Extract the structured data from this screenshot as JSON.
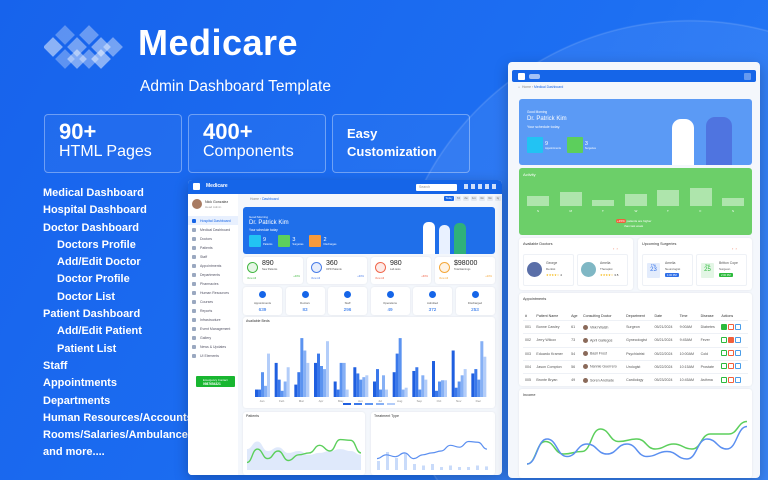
{
  "brand": {
    "name": "Medicare",
    "subtitle": "Admin Dashboard Template"
  },
  "features": [
    {
      "big": "90+",
      "small": "HTML Pages"
    },
    {
      "big": "400+",
      "small": "Components"
    },
    {
      "line1": "Easy",
      "line2": "Customization"
    }
  ],
  "page_list": [
    {
      "label": "Medical Dashboard",
      "indent": false
    },
    {
      "label": "Hospital Dashboard",
      "indent": false
    },
    {
      "label": "Doctor Dashboard",
      "indent": false
    },
    {
      "label": "Doctors Profile",
      "indent": true
    },
    {
      "label": "Add/Edit Doctor",
      "indent": true
    },
    {
      "label": "Doctor Profile",
      "indent": true
    },
    {
      "label": "Doctor List",
      "indent": true
    },
    {
      "label": "Patient Dashboard",
      "indent": false
    },
    {
      "label": "Add/Edit Patient",
      "indent": true
    },
    {
      "label": "Patient List",
      "indent": true
    },
    {
      "label": "Staff",
      "indent": false
    },
    {
      "label": "Appointments",
      "indent": false
    },
    {
      "label": "Departments",
      "indent": false
    },
    {
      "label": "Human Resources/Accounts",
      "indent": false
    },
    {
      "label": "Rooms/Salaries/Ambulance",
      "indent": false
    },
    {
      "label": "and more....",
      "indent": false
    }
  ],
  "hospital": {
    "logo": "Medicare",
    "search_placeholder": "Search",
    "user": {
      "name": "Nick Gonzalez",
      "role": "Head Admin"
    },
    "breadcrumb": [
      "Home",
      "Dashboard"
    ],
    "periods": [
      "Today",
      "7d",
      "2w",
      "1m",
      "3m",
      "6m",
      "1y"
    ],
    "sidebar": [
      "Hospital Dashboard",
      "Medical Dashboard",
      "Doctors",
      "Patients",
      "Staff",
      "Appointments",
      "Departments",
      "Pharmacies",
      "Human Resources",
      "Courses",
      "Reports",
      "Infrastructure",
      "Event Management",
      "Gallery",
      "News & Updates",
      "UI Elements"
    ],
    "emergency": {
      "label": "Emergency Contact",
      "number": "0987654321"
    },
    "banner": {
      "greeting": "Good Morning",
      "name": "Dr. Patrick Kim",
      "note": "Your schedule today",
      "stats": [
        {
          "value": "9",
          "label": "Patients",
          "color": "#22c3f3"
        },
        {
          "value": "3",
          "label": "Surgeries",
          "color": "#5ccf5c"
        },
        {
          "value": "2",
          "label": "Discharges",
          "color": "#f79a3c"
        }
      ]
    },
    "stat_cards": [
      {
        "value": "890",
        "label": "New Patients",
        "link": "View All",
        "change": "+40%",
        "color": "#43b843"
      },
      {
        "value": "360",
        "label": "OPD Patients",
        "link": "View All",
        "change": "+30%",
        "color": "#4a7de8"
      },
      {
        "value": "980",
        "label": "Lab tests",
        "link": "View All",
        "change": "+60%",
        "color": "#f0654a"
      },
      {
        "value": "$98000",
        "label": "Total Earnings",
        "link": "View All",
        "change": "+20%",
        "color": "#f4a73a"
      }
    ],
    "counters": [
      {
        "label": "Appointments",
        "value": "639"
      },
      {
        "label": "Doctors",
        "value": "83"
      },
      {
        "label": "Staff",
        "value": "296"
      },
      {
        "label": "Operations",
        "value": "49"
      },
      {
        "label": "Admitted",
        "value": "372"
      },
      {
        "label": "Discharged",
        "value": "253"
      }
    ],
    "beds_title": "Available Beds",
    "patients_title": "Patients",
    "treatment_title": "Treatment Type"
  },
  "medical": {
    "breadcrumb": [
      "Home",
      "Medical Dashboard"
    ],
    "banner": {
      "greeting": "Good Morning",
      "name": "Dr. Patrick Kim",
      "note": "Your schedule today.",
      "stats": [
        {
          "value": "9",
          "label": "Appointments",
          "color": "#22c3f3"
        },
        {
          "value": "3",
          "label": "Surgeries",
          "color": "#5ccf5c"
        }
      ]
    },
    "activity": {
      "title": "Activity",
      "days": [
        "S",
        "M",
        "T",
        "W",
        "T",
        "F",
        "S"
      ],
      "badge": "+15%",
      "note": "patients are higher",
      "note2": "than last week"
    },
    "doctors": {
      "title": "Available Doctors",
      "items": [
        {
          "name": "George",
          "role": "Dentist",
          "rating": "4"
        },
        {
          "name": "Amelia",
          "role": "Therapist",
          "rating": "3.5"
        }
      ]
    },
    "surgeries": {
      "title": "Upcoming Surgeries",
      "items": [
        {
          "day": "Thu",
          "date": "23",
          "name": "Amelia",
          "role": "Neurologist",
          "time": "1:00 PM",
          "color": "#2f6fe8"
        },
        {
          "day": "Sat",
          "date": "25",
          "name": "Britton Cope",
          "role": "Surgeon",
          "time": "2:00 PM",
          "color": "#2cba3c"
        }
      ]
    },
    "appointments": {
      "title": "Appointments",
      "columns": [
        "#",
        "Patient Name",
        "Age",
        "Consulting Doctor",
        "Department",
        "Date",
        "Time",
        "Disease",
        "Actions"
      ],
      "rows": [
        [
          "001",
          "Bonne Cawley",
          "61",
          "Vikki Walsh",
          "Surgeon",
          "05/21/2024",
          "9:00AM",
          "Diabetes"
        ],
        [
          "002",
          "Jerry Wilcox",
          "73",
          "April Gallegos",
          "Gynecologist",
          "05/21/2024",
          "9:45AM",
          "Fever"
        ],
        [
          "003",
          "Eduardo Kramer",
          "54",
          "Basil Frost",
          "Psychiatrist",
          "05/22/2024",
          "10:00AM",
          "Cold"
        ],
        [
          "004",
          "Jason Compton",
          "56",
          "Nannie Guerrero",
          "Urologist",
          "05/22/2024",
          "10:15AM",
          "Prostate"
        ],
        [
          "005",
          "Bronte Bryan",
          "49",
          "Soren Andrade",
          "Cardiology",
          "05/23/2024",
          "10:45AM",
          "Asthma"
        ]
      ]
    },
    "income_title": "Income"
  },
  "chart_data": [
    {
      "type": "bar",
      "title": "Available Beds",
      "categories": [
        "Jan",
        "Feb",
        "Mar",
        "Apr",
        "May",
        "Jun",
        "Jul",
        "Aug",
        "Sep",
        "Oct",
        "Nov",
        "Dec"
      ],
      "series": [
        {
          "values": [
            12,
            55,
            20,
            55,
            25,
            48,
            25,
            40,
            42,
            58,
            75,
            38
          ]
        },
        {
          "values": [
            12,
            28,
            40,
            70,
            12,
            38,
            45,
            70,
            48,
            10,
            15,
            45
          ]
        },
        {
          "values": [
            40,
            10,
            95,
            50,
            55,
            28,
            12,
            95,
            12,
            25,
            25,
            28
          ]
        },
        {
          "values": [
            18,
            25,
            75,
            45,
            55,
            32,
            35,
            12,
            35,
            27,
            35,
            90
          ]
        },
        {
          "values": [
            70,
            48,
            55,
            90,
            12,
            35,
            12,
            15,
            28,
            27,
            45,
            65
          ]
        }
      ],
      "colors": [
        "#1f5fe0",
        "#3a78ea",
        "#5b93f0",
        "#86b0f5",
        "#b3cdf9"
      ]
    },
    {
      "type": "line",
      "title": "Patients",
      "values": [
        20,
        55,
        30,
        50,
        25,
        40,
        45,
        65,
        50,
        80,
        78,
        45
      ],
      "area": [
        55,
        75,
        50,
        60,
        45,
        50,
        40,
        45,
        50,
        55,
        50,
        40
      ],
      "color": "#5ccf5c"
    },
    {
      "type": "line",
      "title": "Treatment Type",
      "values": [
        30,
        40,
        35,
        45,
        30,
        40,
        45,
        50,
        65,
        60,
        75,
        73,
        55
      ],
      "bars": [
        30,
        60,
        40,
        55,
        20,
        15,
        20,
        10,
        15,
        10,
        10,
        15,
        12
      ],
      "color": "#5b8ff0"
    },
    {
      "type": "line",
      "title": "Income",
      "series": [
        {
          "values": [
            10,
            55,
            30,
            35,
            80,
            55,
            60,
            40,
            50,
            40,
            70,
            70,
            95
          ],
          "color": "#5ccf5c"
        },
        {
          "values": [
            10,
            60,
            25,
            50,
            30,
            50,
            25,
            35,
            20,
            60,
            40,
            85
          ],
          "color": "#5b8ff0"
        }
      ]
    }
  ]
}
